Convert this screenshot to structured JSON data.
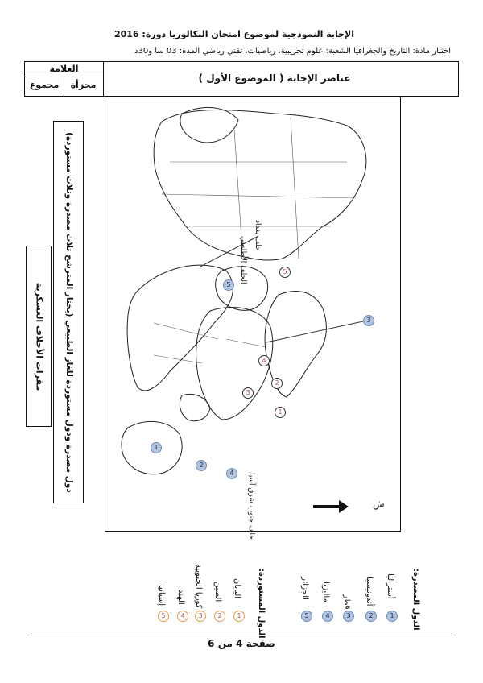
{
  "header": {
    "line1": "الإجابة النموذجية لموضوع امتحان البكالوريا دورة: 2016",
    "line2": "اختبار مادة: التاريخ والجغرافيا  الشعبة: علوم تجريبية، رياضيات، تقني رياضي  المدة: 03 سا و30د"
  },
  "table": {
    "answer_elements": "عناصر الإجابة ( الموضوع الأول )",
    "grade": "العلامة",
    "partial": "مجزأة",
    "total": "مجموع"
  },
  "side": {
    "outer_text": "دول مصدرة ودول مستوردة للغاز الطبيعي (يختار المترشح ثلاث مصدرة وثلاث مستوردة)",
    "inner_text": "مقرات الأحلاف العسكرية"
  },
  "map": {
    "labels": {
      "atlantic": "الحلف الأطلسي",
      "baghdad": "حلف بغداد",
      "southeast_asia": "حلف جنوب شرق آسيا",
      "north": "ش"
    },
    "blue_markers": [
      "1",
      "2",
      "3",
      "4",
      "5"
    ],
    "open_markers": [
      "1",
      "2",
      "3",
      "4",
      "5"
    ]
  },
  "legend": {
    "exporting_title": "الدول المصدرة:",
    "exporting": [
      {
        "num": "1",
        "name": "أستراليا"
      },
      {
        "num": "2",
        "name": "أندونيسيا"
      },
      {
        "num": "3",
        "name": "قطر"
      },
      {
        "num": "4",
        "name": "ماليزيا"
      },
      {
        "num": "5",
        "name": "الجزائر"
      }
    ],
    "importing_title": "الدول المستوردة:",
    "importing": [
      {
        "num": "1",
        "name": "اليابان"
      },
      {
        "num": "2",
        "name": "الصين"
      },
      {
        "num": "3",
        "name": "كوريا الجنوبية"
      },
      {
        "num": "4",
        "name": "الهند"
      },
      {
        "num": "5",
        "name": "إسبانيا"
      }
    ]
  },
  "footer": "صفحة 4 من 6",
  "colors": {
    "blue_marker": "#aec4e0",
    "orange_marker": "#e39b4d"
  }
}
